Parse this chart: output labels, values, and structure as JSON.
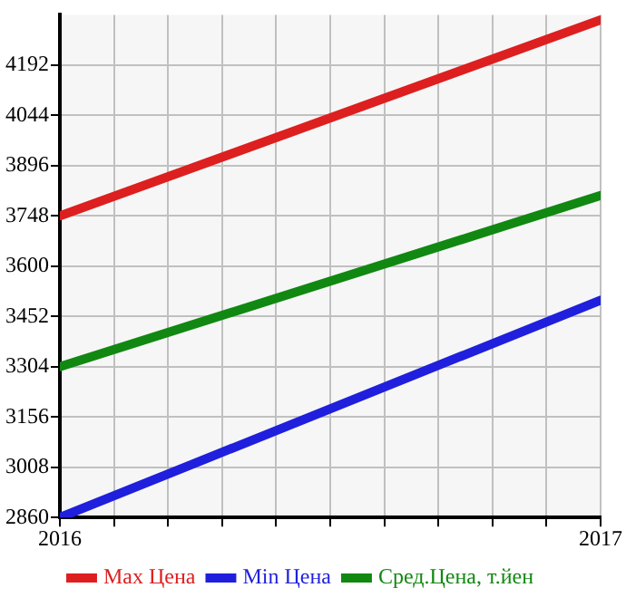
{
  "chart_data": {
    "type": "line",
    "x": [
      2016,
      2017
    ],
    "series": [
      {
        "name": "Max Цена",
        "color": "#dd1f1f",
        "values": [
          3748,
          4325
        ]
      },
      {
        "name": "Min Цена",
        "color": "#1f1fdd",
        "values": [
          2860,
          3500
        ]
      },
      {
        "name": "Сред.Цена, т.йен",
        "color": "#118811",
        "values": [
          3304,
          3808
        ]
      }
    ],
    "xlim": [
      2016,
      2017
    ],
    "xticks": [
      {
        "value": 2016,
        "label": "2016"
      },
      {
        "value": 2016.1,
        "label": null
      },
      {
        "value": 2016.2,
        "label": null
      },
      {
        "value": 2016.3,
        "label": null
      },
      {
        "value": 2016.4,
        "label": null
      },
      {
        "value": 2016.5,
        "label": null
      },
      {
        "value": 2016.6,
        "label": null
      },
      {
        "value": 2016.7,
        "label": null
      },
      {
        "value": 2016.8,
        "label": null
      },
      {
        "value": 2016.9,
        "label": null
      },
      {
        "value": 2017,
        "label": "2017"
      }
    ],
    "ylim": [
      2860,
      4340
    ],
    "yticks": [
      2860,
      3008,
      3156,
      3304,
      3452,
      3600,
      3748,
      3896,
      4044,
      4192
    ],
    "grid": true,
    "legend": "bottom",
    "marker": "none",
    "line_style": "solid"
  }
}
